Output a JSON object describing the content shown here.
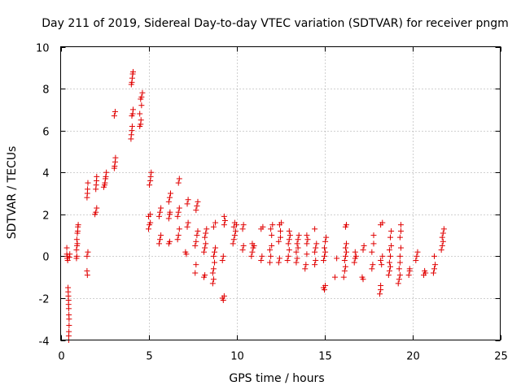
{
  "chart_data": {
    "type": "scatter",
    "title": "Day 211 of 2019, Sidereal Day-to-day VTEC variation (SDTVAR) for receiver pngm",
    "xlabel": "GPS time / hours",
    "ylabel": "SDTVAR / TECUs",
    "xlim": [
      0,
      25
    ],
    "ylim": [
      -4,
      10
    ],
    "x_ticks": [
      0,
      5,
      10,
      15,
      20,
      25
    ],
    "x_tick_labels": [
      "0",
      "5",
      "10",
      "15",
      "20",
      "25"
    ],
    "y_ticks": [
      -4,
      -2,
      0,
      2,
      4,
      6,
      8,
      10
    ],
    "y_tick_labels": [
      "-4",
      "-2",
      "0",
      "2",
      "4",
      "6",
      "8",
      "10"
    ],
    "grid": true,
    "marker": "plus",
    "color": "#e00000",
    "series": [
      {
        "name": "SDTVAR",
        "points": [
          [
            0.35,
            0.4
          ],
          [
            0.35,
            0.1
          ],
          [
            0.37,
            -0.1
          ],
          [
            0.4,
            -0.2
          ],
          [
            0.38,
            0.0
          ],
          [
            0.42,
            -1.5
          ],
          [
            0.43,
            -1.7
          ],
          [
            0.44,
            -1.9
          ],
          [
            0.45,
            -2.1
          ],
          [
            0.45,
            -2.3
          ],
          [
            0.46,
            -2.5
          ],
          [
            0.47,
            -2.8
          ],
          [
            0.48,
            -3.0
          ],
          [
            0.48,
            -3.3
          ],
          [
            0.47,
            -3.6
          ],
          [
            0.46,
            -3.8
          ],
          [
            0.46,
            -4.0
          ],
          [
            0.5,
            -0.05
          ],
          [
            0.52,
            0.1
          ],
          [
            0.9,
            -0.1
          ],
          [
            0.92,
            0.0
          ],
          [
            0.9,
            0.3
          ],
          [
            0.93,
            0.5
          ],
          [
            0.95,
            0.6
          ],
          [
            0.92,
            0.8
          ],
          [
            0.95,
            1.1
          ],
          [
            0.97,
            1.2
          ],
          [
            0.98,
            1.4
          ],
          [
            1.0,
            1.5
          ],
          [
            1.5,
            -0.7
          ],
          [
            1.52,
            -0.9
          ],
          [
            1.5,
            0.0
          ],
          [
            1.55,
            0.2
          ],
          [
            1.5,
            2.8
          ],
          [
            1.52,
            3.0
          ],
          [
            1.53,
            3.2
          ],
          [
            1.55,
            3.5
          ],
          [
            1.95,
            2.0
          ],
          [
            2.0,
            2.1
          ],
          [
            2.05,
            2.3
          ],
          [
            2.0,
            3.2
          ],
          [
            2.02,
            3.4
          ],
          [
            2.04,
            3.6
          ],
          [
            2.05,
            3.8
          ],
          [
            2.45,
            3.3
          ],
          [
            2.5,
            3.4
          ],
          [
            2.52,
            3.5
          ],
          [
            2.55,
            3.7
          ],
          [
            2.57,
            3.8
          ],
          [
            2.6,
            4.0
          ],
          [
            3.05,
            4.2
          ],
          [
            3.07,
            4.3
          ],
          [
            3.1,
            4.5
          ],
          [
            3.12,
            4.7
          ],
          [
            3.05,
            6.7
          ],
          [
            3.1,
            6.9
          ],
          [
            4.0,
            5.6
          ],
          [
            4.02,
            5.8
          ],
          [
            4.05,
            6.0
          ],
          [
            4.07,
            6.2
          ],
          [
            4.05,
            6.7
          ],
          [
            4.1,
            6.8
          ],
          [
            4.12,
            7.0
          ],
          [
            4.02,
            8.2
          ],
          [
            4.05,
            8.3
          ],
          [
            4.07,
            8.5
          ],
          [
            4.1,
            8.7
          ],
          [
            4.12,
            8.8
          ],
          [
            4.5,
            6.2
          ],
          [
            4.55,
            6.3
          ],
          [
            4.57,
            6.5
          ],
          [
            4.5,
            6.8
          ],
          [
            4.6,
            7.2
          ],
          [
            4.55,
            7.5
          ],
          [
            4.6,
            7.6
          ],
          [
            4.65,
            7.8
          ],
          [
            5.0,
            1.3
          ],
          [
            5.05,
            1.5
          ],
          [
            5.1,
            1.6
          ],
          [
            5.0,
            1.9
          ],
          [
            5.1,
            2.0
          ],
          [
            5.05,
            3.4
          ],
          [
            5.1,
            3.6
          ],
          [
            5.12,
            3.8
          ],
          [
            5.15,
            4.0
          ],
          [
            5.6,
            0.6
          ],
          [
            5.65,
            0.8
          ],
          [
            5.7,
            1.0
          ],
          [
            5.6,
            1.9
          ],
          [
            5.65,
            2.1
          ],
          [
            5.7,
            2.3
          ],
          [
            6.15,
            0.6
          ],
          [
            6.2,
            0.7
          ],
          [
            6.15,
            1.8
          ],
          [
            6.2,
            2.0
          ],
          [
            6.22,
            2.1
          ],
          [
            6.15,
            2.6
          ],
          [
            6.2,
            2.8
          ],
          [
            6.25,
            3.0
          ],
          [
            6.65,
            0.8
          ],
          [
            6.7,
            1.0
          ],
          [
            6.75,
            1.3
          ],
          [
            6.65,
            1.9
          ],
          [
            6.7,
            2.1
          ],
          [
            6.75,
            2.3
          ],
          [
            6.7,
            3.5
          ],
          [
            6.75,
            3.7
          ],
          [
            7.1,
            0.2
          ],
          [
            7.15,
            0.1
          ],
          [
            7.2,
            1.4
          ],
          [
            7.25,
            1.6
          ],
          [
            7.2,
            2.5
          ],
          [
            7.25,
            2.7
          ],
          [
            7.65,
            -0.8
          ],
          [
            7.7,
            -0.4
          ],
          [
            7.65,
            0.5
          ],
          [
            7.7,
            0.7
          ],
          [
            7.75,
            1.0
          ],
          [
            7.8,
            1.2
          ],
          [
            7.7,
            2.2
          ],
          [
            7.75,
            2.4
          ],
          [
            7.8,
            2.6
          ],
          [
            8.15,
            -1.0
          ],
          [
            8.2,
            -0.9
          ],
          [
            8.15,
            0.2
          ],
          [
            8.2,
            0.4
          ],
          [
            8.25,
            0.6
          ],
          [
            8.2,
            0.9
          ],
          [
            8.25,
            1.1
          ],
          [
            8.3,
            1.3
          ],
          [
            8.65,
            -1.3
          ],
          [
            8.7,
            -1.1
          ],
          [
            8.65,
            -0.8
          ],
          [
            8.7,
            -0.6
          ],
          [
            8.75,
            -0.3
          ],
          [
            8.7,
            0.0
          ],
          [
            8.75,
            0.2
          ],
          [
            8.8,
            0.4
          ],
          [
            8.7,
            1.4
          ],
          [
            8.8,
            1.6
          ],
          [
            9.2,
            -2.0
          ],
          [
            9.25,
            -2.1
          ],
          [
            9.3,
            -1.9
          ],
          [
            9.2,
            -0.2
          ],
          [
            9.25,
            0.0
          ],
          [
            9.3,
            1.5
          ],
          [
            9.35,
            1.7
          ],
          [
            9.3,
            1.9
          ],
          [
            9.8,
            0.6
          ],
          [
            9.85,
            0.8
          ],
          [
            9.9,
            1.0
          ],
          [
            9.95,
            1.2
          ],
          [
            9.85,
            1.4
          ],
          [
            9.9,
            1.6
          ],
          [
            10.0,
            1.5
          ],
          [
            10.35,
            0.3
          ],
          [
            10.4,
            0.5
          ],
          [
            10.35,
            1.3
          ],
          [
            10.4,
            1.5
          ],
          [
            10.85,
            0.0
          ],
          [
            10.9,
            0.2
          ],
          [
            10.95,
            0.4
          ],
          [
            10.9,
            0.6
          ],
          [
            11.0,
            0.5
          ],
          [
            11.4,
            -0.2
          ],
          [
            11.45,
            0.0
          ],
          [
            11.4,
            1.3
          ],
          [
            11.5,
            1.4
          ],
          [
            11.9,
            -0.3
          ],
          [
            11.95,
            0.0
          ],
          [
            11.9,
            0.3
          ],
          [
            12.0,
            0.5
          ],
          [
            12.0,
            1.0
          ],
          [
            11.95,
            1.3
          ],
          [
            12.05,
            1.5
          ],
          [
            12.4,
            -0.3
          ],
          [
            12.45,
            -0.1
          ],
          [
            12.4,
            0.7
          ],
          [
            12.5,
            0.9
          ],
          [
            12.5,
            1.2
          ],
          [
            12.45,
            1.5
          ],
          [
            12.55,
            1.6
          ],
          [
            12.9,
            -0.2
          ],
          [
            12.95,
            0.0
          ],
          [
            13.0,
            0.3
          ],
          [
            12.95,
            0.6
          ],
          [
            13.0,
            0.8
          ],
          [
            13.05,
            1.0
          ],
          [
            13.0,
            1.2
          ],
          [
            13.4,
            -0.3
          ],
          [
            13.45,
            -0.1
          ],
          [
            13.4,
            0.2
          ],
          [
            13.5,
            0.4
          ],
          [
            13.45,
            0.6
          ],
          [
            13.5,
            0.8
          ],
          [
            13.55,
            1.0
          ],
          [
            13.9,
            -0.6
          ],
          [
            13.95,
            -0.4
          ],
          [
            14.0,
            0.1
          ],
          [
            14.0,
            0.6
          ],
          [
            14.05,
            0.8
          ],
          [
            14.0,
            1.0
          ],
          [
            14.45,
            -0.4
          ],
          [
            14.5,
            -0.2
          ],
          [
            14.45,
            0.2
          ],
          [
            14.5,
            0.4
          ],
          [
            14.55,
            0.6
          ],
          [
            14.45,
            1.3
          ],
          [
            14.95,
            -1.5
          ],
          [
            15.0,
            -1.6
          ],
          [
            15.05,
            -1.4
          ],
          [
            14.95,
            -0.2
          ],
          [
            15.0,
            0.0
          ],
          [
            15.05,
            0.2
          ],
          [
            15.0,
            0.4
          ],
          [
            15.05,
            0.7
          ],
          [
            15.1,
            0.9
          ],
          [
            15.6,
            -1.0
          ],
          [
            15.7,
            -0.1
          ],
          [
            16.1,
            -1.0
          ],
          [
            16.15,
            -0.7
          ],
          [
            16.2,
            -0.5
          ],
          [
            16.15,
            -0.2
          ],
          [
            16.2,
            0.0
          ],
          [
            16.25,
            0.2
          ],
          [
            16.2,
            0.4
          ],
          [
            16.25,
            0.6
          ],
          [
            16.2,
            1.4
          ],
          [
            16.25,
            1.5
          ],
          [
            16.7,
            -0.3
          ],
          [
            16.75,
            -0.1
          ],
          [
            16.8,
            0.0
          ],
          [
            16.75,
            0.2
          ],
          [
            17.15,
            -1.0
          ],
          [
            17.2,
            -1.1
          ],
          [
            17.2,
            0.3
          ],
          [
            17.25,
            0.5
          ],
          [
            17.7,
            -0.6
          ],
          [
            17.75,
            -0.4
          ],
          [
            17.7,
            0.2
          ],
          [
            17.8,
            0.6
          ],
          [
            17.8,
            1.0
          ],
          [
            18.15,
            -1.8
          ],
          [
            18.2,
            -1.6
          ],
          [
            18.2,
            -1.4
          ],
          [
            18.25,
            -0.4
          ],
          [
            18.2,
            -0.2
          ],
          [
            18.3,
            0.0
          ],
          [
            18.2,
            1.5
          ],
          [
            18.3,
            1.6
          ],
          [
            18.65,
            -0.9
          ],
          [
            18.7,
            -0.7
          ],
          [
            18.75,
            -0.5
          ],
          [
            18.7,
            -0.3
          ],
          [
            18.75,
            0.0
          ],
          [
            18.7,
            0.3
          ],
          [
            18.8,
            0.5
          ],
          [
            18.75,
            0.9
          ],
          [
            18.8,
            1.2
          ],
          [
            19.2,
            -1.3
          ],
          [
            19.25,
            -1.1
          ],
          [
            19.3,
            -0.9
          ],
          [
            19.25,
            -0.6
          ],
          [
            19.3,
            -0.3
          ],
          [
            19.3,
            0.0
          ],
          [
            19.35,
            0.4
          ],
          [
            19.3,
            0.9
          ],
          [
            19.35,
            1.2
          ],
          [
            19.35,
            1.5
          ],
          [
            19.8,
            -0.9
          ],
          [
            19.85,
            -0.7
          ],
          [
            19.85,
            -0.6
          ],
          [
            20.2,
            -0.2
          ],
          [
            20.25,
            0.0
          ],
          [
            20.3,
            0.2
          ],
          [
            20.65,
            -0.9
          ],
          [
            20.7,
            -0.7
          ],
          [
            20.75,
            -0.8
          ],
          [
            21.2,
            -0.8
          ],
          [
            21.25,
            -0.6
          ],
          [
            21.3,
            -0.4
          ],
          [
            21.25,
            0.0
          ],
          [
            21.65,
            0.3
          ],
          [
            21.7,
            0.5
          ],
          [
            21.75,
            0.7
          ],
          [
            21.7,
            0.9
          ],
          [
            21.75,
            1.1
          ],
          [
            21.8,
            1.3
          ]
        ]
      }
    ]
  }
}
